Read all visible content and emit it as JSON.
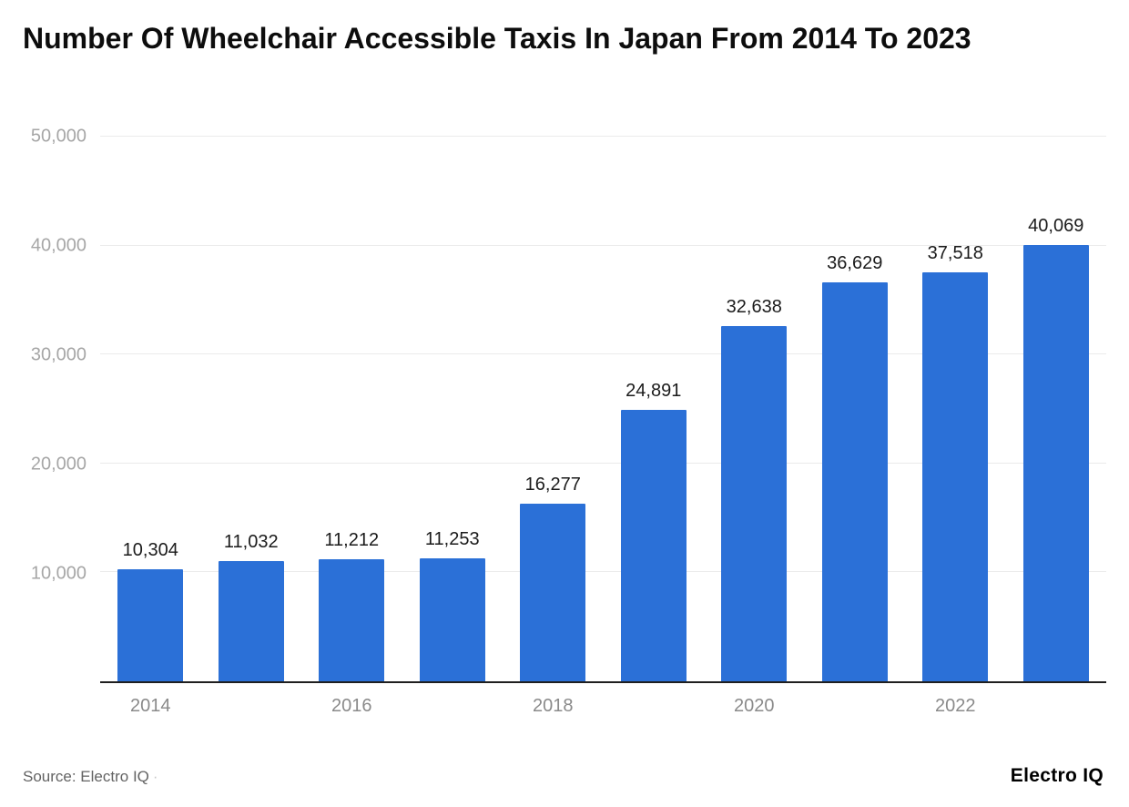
{
  "title": "Number Of Wheelchair Accessible Taxis In Japan From 2014 To 2023",
  "source": {
    "label": "Source: Electro IQ",
    "separator": "·",
    "brand": "Electro IQ"
  },
  "chart_data": {
    "type": "bar",
    "title": "Number Of Wheelchair Accessible Taxis In Japan From 2014 To 2023",
    "categories": [
      "2014",
      "2015",
      "2016",
      "2017",
      "2018",
      "2019",
      "2020",
      "2021",
      "2022",
      "2023"
    ],
    "values": [
      10304,
      11032,
      11212,
      11253,
      16277,
      24891,
      32638,
      36629,
      37518,
      40069
    ],
    "value_labels": [
      "10,304",
      "11,032",
      "11,212",
      "11,253",
      "16,277",
      "24,891",
      "32,638",
      "36,629",
      "37,518",
      "40,069"
    ],
    "x_tick_labels": [
      "2014",
      "",
      "2016",
      "",
      "2018",
      "",
      "2020",
      "",
      "2022",
      ""
    ],
    "y_ticks": [
      {
        "value": 10000,
        "label": "10,000"
      },
      {
        "value": 20000,
        "label": "20,000"
      },
      {
        "value": 30000,
        "label": "30,000"
      },
      {
        "value": 40000,
        "label": "40,000"
      },
      {
        "value": 50000,
        "label": "50,000"
      }
    ],
    "ylim": [
      0,
      50000
    ],
    "xlabel": "",
    "ylabel": "",
    "grid": "horizontal",
    "legend": false,
    "bar_color": "#2b70d7"
  }
}
